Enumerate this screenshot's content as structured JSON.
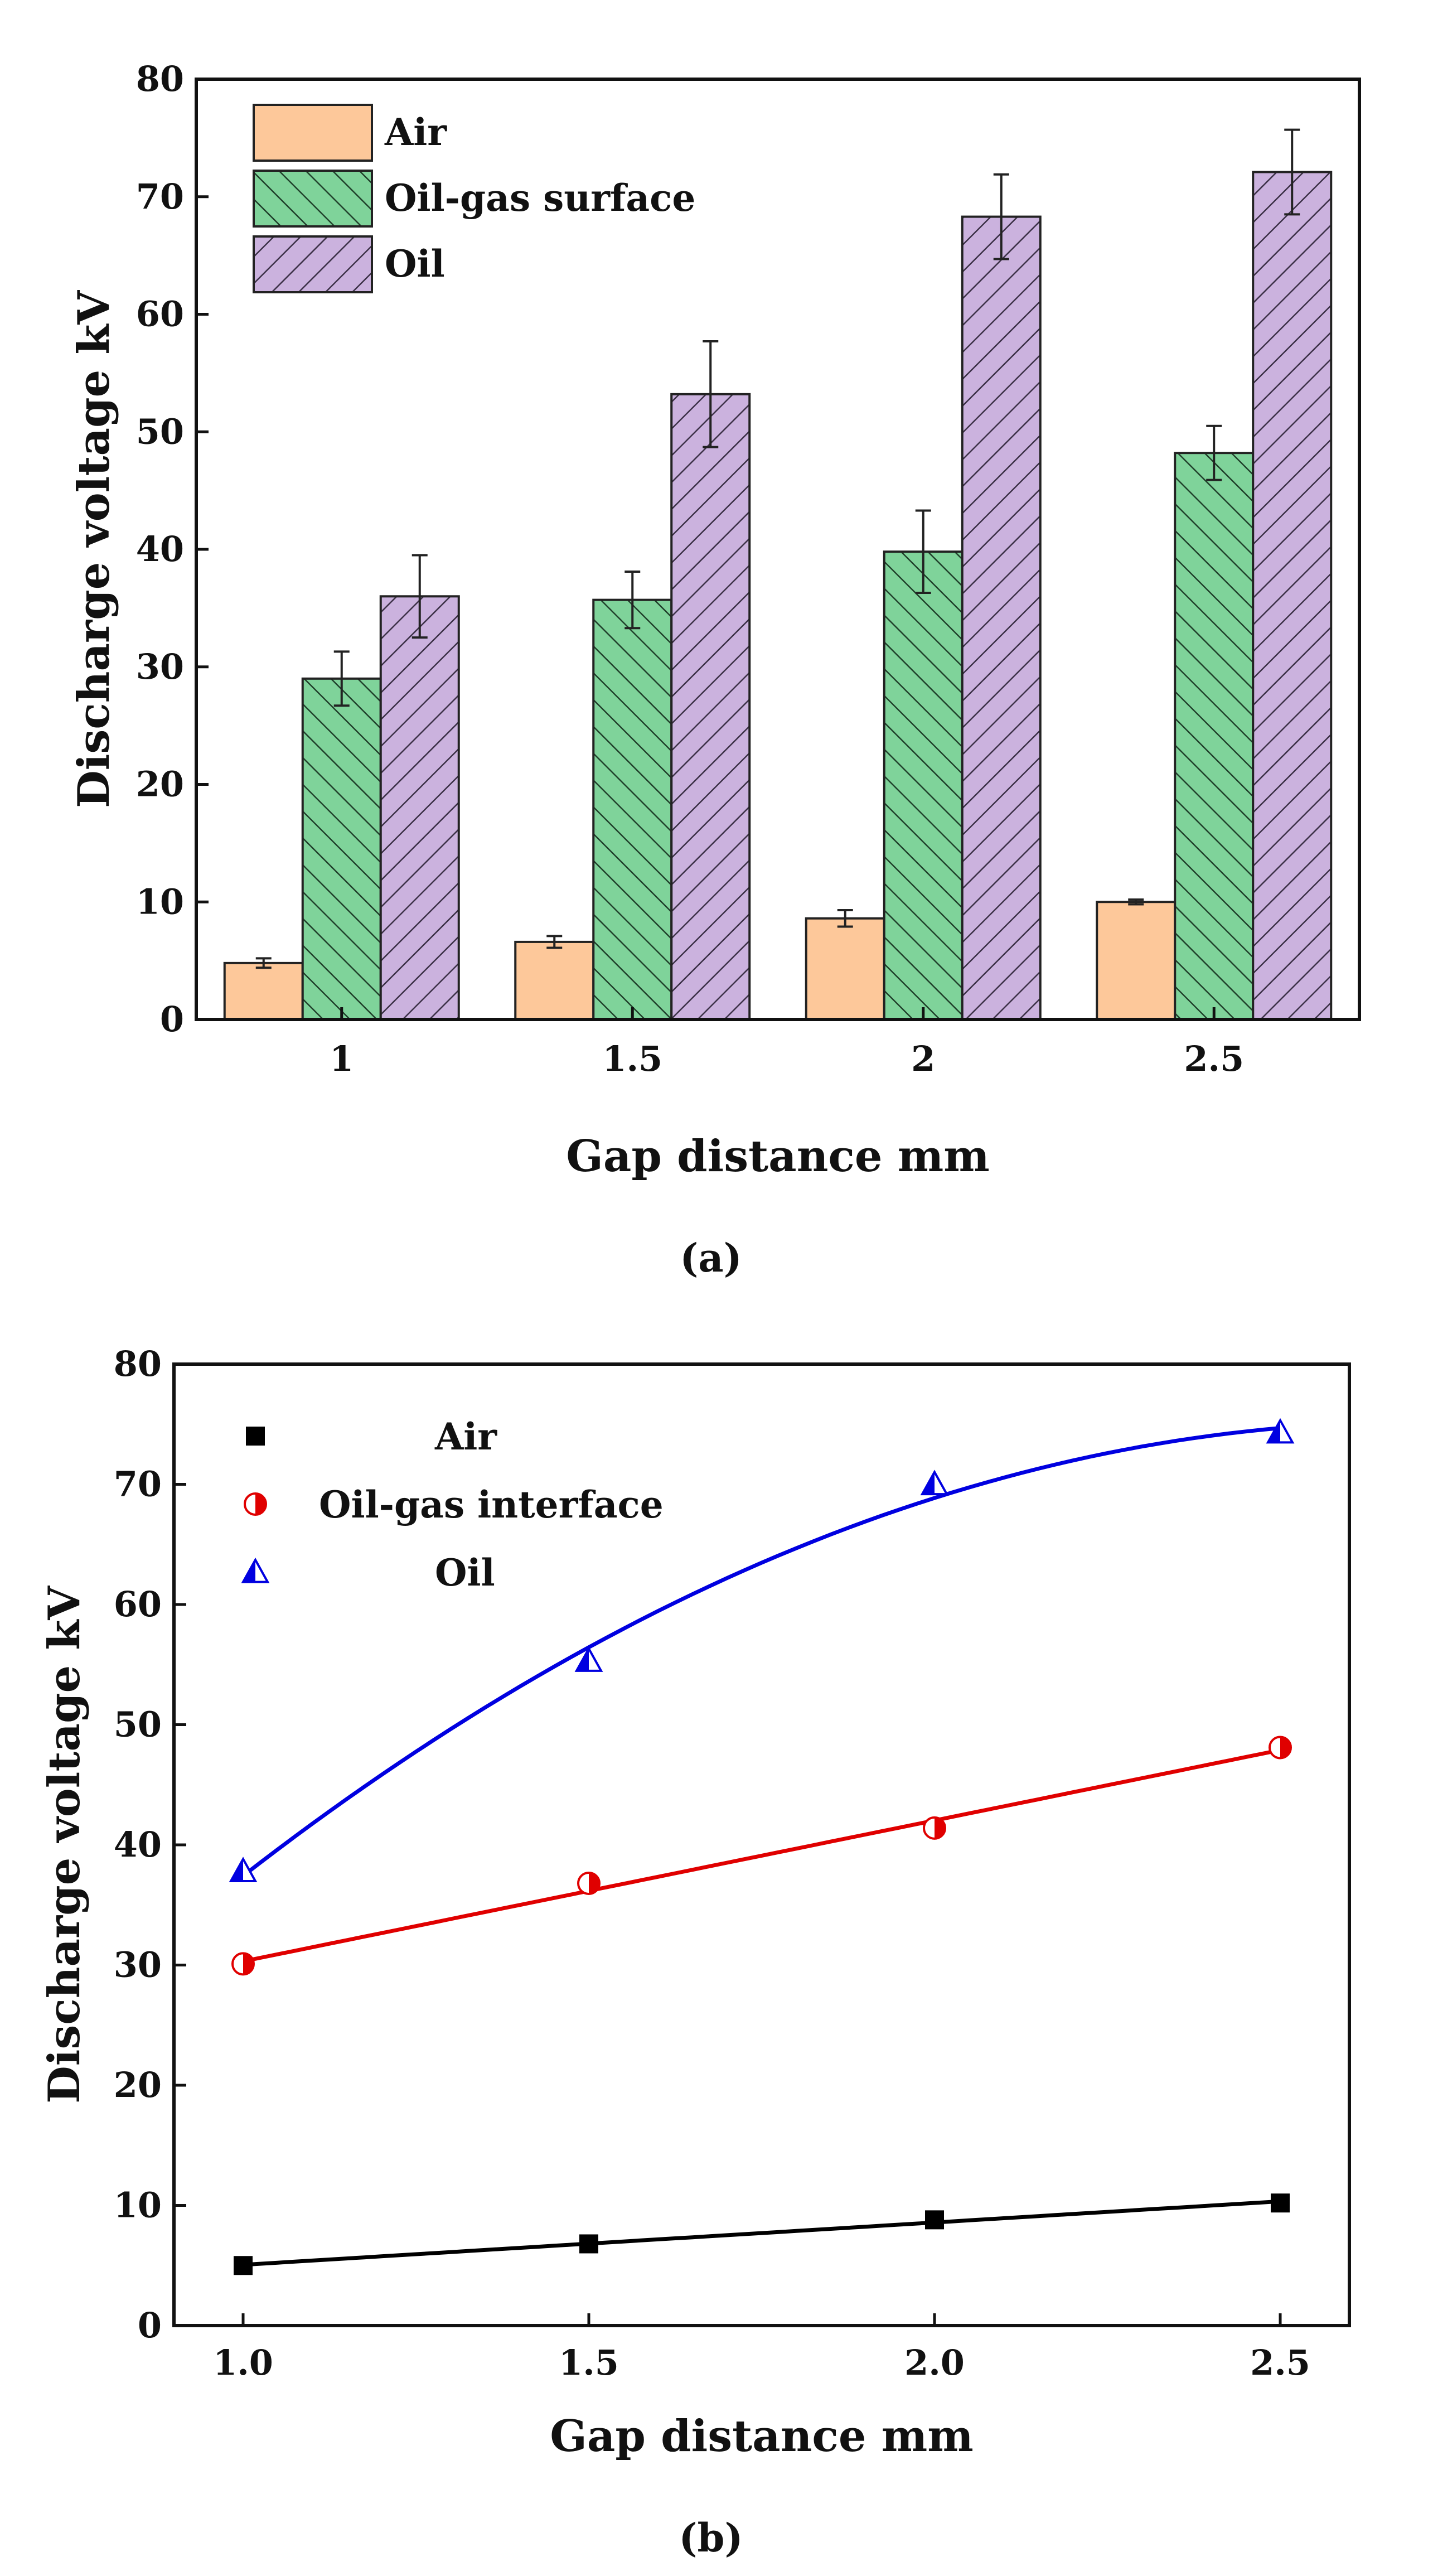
{
  "chart_data": [
    {
      "type": "bar",
      "panel_label": "(a)",
      "categories": [
        "1",
        "1.5",
        "2",
        "2.5"
      ],
      "xlabel": "Gap distance mm",
      "ylabel": "Discharge voltage kV",
      "ylim": [
        0,
        80
      ],
      "yticks": [
        0,
        10,
        20,
        30,
        40,
        50,
        60,
        70,
        80
      ],
      "grid": false,
      "legend_placement": "top-left",
      "series": [
        {
          "name": "Air",
          "color": "#fdc89a",
          "pattern": "solid",
          "values": [
            4.8,
            6.6,
            8.6,
            10.0
          ],
          "errors": [
            0.4,
            0.5,
            0.7,
            0.2
          ]
        },
        {
          "name": "Oil-gas surface",
          "color": "#7fd39a",
          "pattern": "hatch-backslash",
          "values": [
            29.0,
            35.7,
            39.8,
            48.2
          ],
          "errors": [
            2.3,
            2.4,
            3.5,
            2.3
          ]
        },
        {
          "name": "Oil",
          "color": "#cbb2de",
          "pattern": "hatch-slash",
          "values": [
            36.0,
            53.2,
            68.3,
            72.1
          ],
          "errors": [
            3.5,
            4.5,
            3.6,
            3.6
          ]
        }
      ]
    },
    {
      "type": "scatter",
      "panel_label": "(b)",
      "xlabel": "Gap distance mm",
      "ylabel": "Discharge voltage kV",
      "xlim": [
        0.9,
        2.6
      ],
      "ylim": [
        0,
        80
      ],
      "xticks": [
        "1.0",
        "1.5",
        "2.0",
        "2.5"
      ],
      "yticks": [
        0,
        10,
        20,
        30,
        40,
        50,
        60,
        70,
        80
      ],
      "grid": false,
      "legend_placement": "top-left",
      "series": [
        {
          "name": "Air",
          "color": "#000000",
          "marker": "square",
          "x": [
            1.0,
            1.5,
            2.0,
            2.5
          ],
          "y": [
            5.0,
            6.8,
            8.8,
            10.2
          ],
          "fit": "linear"
        },
        {
          "name": "Oil-gas interface",
          "color": "#e00000",
          "marker": "half-circle",
          "x": [
            1.0,
            1.5,
            2.0,
            2.5
          ],
          "y": [
            30.1,
            36.8,
            41.4,
            48.1
          ],
          "fit": "linear"
        },
        {
          "name": "Oil",
          "color": "#0000e0",
          "marker": "half-triangle",
          "x": [
            1.0,
            1.5,
            2.0,
            2.5
          ],
          "y": [
            37.8,
            55.3,
            70.0,
            74.3
          ],
          "fit": "quadratic"
        }
      ]
    }
  ]
}
